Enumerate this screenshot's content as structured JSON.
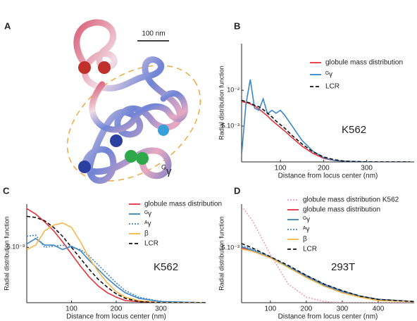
{
  "panel_a": {
    "label": "A",
    "scale_label": "100 nm",
    "annotation_sup": "G",
    "annotation": "γ"
  },
  "chart_data": [
    {
      "type": "line",
      "panel_label": "B",
      "annotation": "K562",
      "xlabel": "Distance from locus center (nm)",
      "ylabel": "Radial distribution function",
      "xlim": [
        10,
        410
      ],
      "ylim": [
        0,
        0.0165
      ],
      "xticks": [
        100,
        200,
        300
      ],
      "yticks": [
        {
          "value": 0.005,
          "label": "5.10⁻³"
        },
        {
          "value": 0.01,
          "label": "10⁻²"
        }
      ],
      "legend": "upper right",
      "x": [
        10,
        20,
        30,
        40,
        50,
        60,
        70,
        80,
        90,
        100,
        110,
        125,
        150,
        175,
        200,
        225,
        250,
        300,
        400
      ],
      "series": [
        {
          "name": "globule mass distribution",
          "color": "#e8323a",
          "style": "solid",
          "values": [
            0.0084,
            0.0083,
            0.0081,
            0.0078,
            0.0074,
            0.0069,
            0.0064,
            0.0058,
            0.0053,
            0.0048,
            0.0043,
            0.0035,
            0.0022,
            0.0012,
            0.0005,
            0.0002,
            0.0001,
            0,
            0
          ]
        },
        {
          "name": "ᴳγ",
          "color": "#3d87c6",
          "style": "solid",
          "values": [
            0.001,
            0.008,
            0.0115,
            0.0075,
            0.0072,
            0.0088,
            0.0067,
            0.0072,
            0.0068,
            0.0072,
            0.0065,
            0.0052,
            0.003,
            0.0015,
            0.0006,
            0.0002,
            0.0001,
            0,
            0
          ]
        },
        {
          "name": "LCR",
          "color": "#111111",
          "style": "dashed",
          "values": [
            0.0086,
            0.0084,
            0.0082,
            0.0079,
            0.0077,
            0.0073,
            0.0068,
            0.0063,
            0.0057,
            0.0052,
            0.0047,
            0.0038,
            0.0025,
            0.0014,
            0.0007,
            0.0003,
            0.0001,
            0,
            0
          ]
        }
      ]
    },
    {
      "type": "line",
      "panel_label": "C",
      "annotation": "K562",
      "xlabel": "Distance from locus center (nm)",
      "ylabel": "Radial distribution function",
      "xlim": [
        0,
        400
      ],
      "ylim": [
        0,
        0.0089
      ],
      "xticks": [
        100,
        200,
        300
      ],
      "yticks": [
        {
          "value": 0.005,
          "label": "5.10⁻³"
        }
      ],
      "legend": "upper right",
      "x": [
        0,
        20,
        40,
        60,
        80,
        100,
        120,
        140,
        160,
        180,
        200,
        220,
        250,
        300,
        400
      ],
      "series": [
        {
          "name": "globule mass distribution",
          "color": "#e8323a",
          "style": "solid",
          "values": [
            0.0085,
            0.008,
            0.0073,
            0.0065,
            0.0055,
            0.0044,
            0.0033,
            0.0023,
            0.0015,
            0.0009,
            0.0005,
            0.0002,
            0.0001,
            0,
            0
          ]
        },
        {
          "name": "ᴳγ",
          "color": "#3d87c6",
          "style": "solid",
          "values": [
            0.0053,
            0.0058,
            0.0052,
            0.0052,
            0.0048,
            0.0051,
            0.0047,
            0.0038,
            0.003,
            0.0022,
            0.0015,
            0.0009,
            0.0004,
            0.0001,
            0
          ]
        },
        {
          "name": "ᴬγ",
          "color": "#3d87c6",
          "style": "dotted",
          "values": [
            0.006,
            0.0061,
            0.005,
            0.0051,
            0.0052,
            0.005,
            0.0048,
            0.0042,
            0.0034,
            0.0026,
            0.0018,
            0.0011,
            0.0005,
            0.0001,
            0
          ]
        },
        {
          "name": "β",
          "color": "#f5b84a",
          "style": "solid",
          "values": [
            0.0048,
            0.0052,
            0.0065,
            0.007,
            0.0072,
            0.0068,
            0.0055,
            0.004,
            0.0028,
            0.0018,
            0.001,
            0.0005,
            0.0002,
            0,
            0
          ]
        },
        {
          "name": "LCR",
          "color": "#111111",
          "style": "dashed",
          "values": [
            0.0078,
            0.0077,
            0.0074,
            0.0068,
            0.006,
            0.005,
            0.004,
            0.003,
            0.0021,
            0.0014,
            0.0008,
            0.0004,
            0.0001,
            0,
            0
          ]
        }
      ]
    },
    {
      "type": "line",
      "panel_label": "D",
      "annotation": "293T",
      "xlabel": "Distance from locus center (nm)",
      "ylabel": "Radial distribution function",
      "xlim": [
        20,
        500
      ],
      "ylim": [
        0,
        0.009
      ],
      "xticks": [
        100,
        200,
        300,
        400
      ],
      "yticks": [
        {
          "value": 0.005,
          "label": "5.10⁻³"
        }
      ],
      "legend": "upper right",
      "x": [
        20,
        50,
        100,
        150,
        200,
        250,
        300,
        350,
        400,
        500
      ],
      "series": [
        {
          "name": "globule mass distribution K562",
          "color": "#f2a0b0",
          "style": "dotted",
          "values": [
            0.0088,
            0.0075,
            0.0044,
            0.0017,
            0.0005,
            0.0001,
            0,
            0,
            0,
            0
          ]
        },
        {
          "name": "globule mass distribution",
          "color": "#e8323a",
          "style": "solid",
          "values": [
            0.005,
            0.0047,
            0.0041,
            0.0033,
            0.0024,
            0.0016,
            0.001,
            0.0006,
            0.0003,
            0.0001
          ]
        },
        {
          "name": "ᴳγ",
          "color": "#3d87c6",
          "style": "solid",
          "values": [
            0.0051,
            0.0048,
            0.0041,
            0.0033,
            0.0024,
            0.0016,
            0.001,
            0.0006,
            0.0003,
            0.0001
          ]
        },
        {
          "name": "ᴬγ",
          "color": "#3d87c6",
          "style": "dotted",
          "values": [
            0.0052,
            0.0049,
            0.0042,
            0.0033,
            0.0025,
            0.0017,
            0.0011,
            0.0006,
            0.0003,
            0.0001
          ]
        },
        {
          "name": "β",
          "color": "#f5b84a",
          "style": "solid",
          "values": [
            0.0049,
            0.0047,
            0.0041,
            0.0032,
            0.0023,
            0.0015,
            0.0009,
            0.0005,
            0.0002,
            0.0001
          ]
        },
        {
          "name": "LCR",
          "color": "#111111",
          "style": "dashed",
          "values": [
            0.0054,
            0.005,
            0.0042,
            0.0034,
            0.0025,
            0.0017,
            0.0011,
            0.0006,
            0.0003,
            0.0001
          ]
        }
      ]
    }
  ]
}
